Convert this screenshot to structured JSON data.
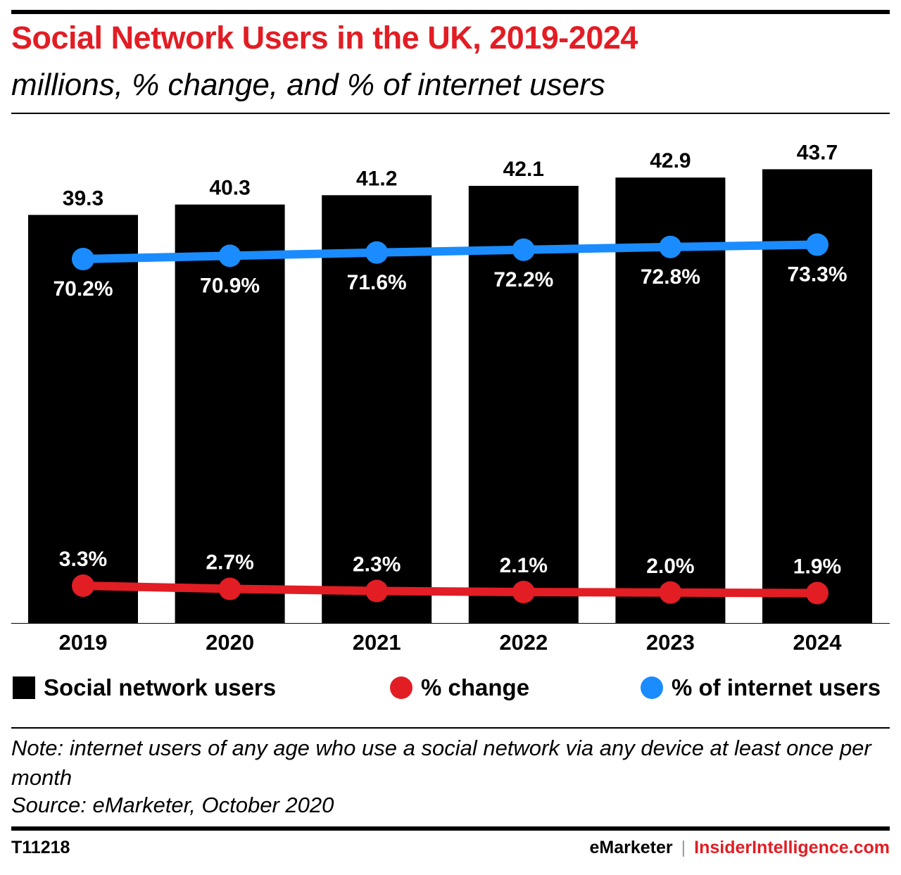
{
  "title": "Social Network Users in the UK, 2019-2024",
  "subtitle": "millions, % change, and % of internet users",
  "chart_data": {
    "type": "bar",
    "title": "Social Network Users in the UK, 2019-2024",
    "subtitle": "millions, % change, and % of internet users",
    "categories": [
      "2019",
      "2020",
      "2021",
      "2022",
      "2023",
      "2024"
    ],
    "series": [
      {
        "name": "Social network users",
        "type": "bar",
        "values": [
          39.3,
          40.3,
          41.2,
          42.1,
          42.9,
          43.7
        ],
        "labels": [
          "39.3",
          "40.3",
          "41.2",
          "42.1",
          "42.9",
          "43.7"
        ],
        "color": "#000000"
      },
      {
        "name": "% change",
        "type": "line",
        "values": [
          3.3,
          2.7,
          2.3,
          2.1,
          2.0,
          1.9
        ],
        "labels": [
          "3.3%",
          "2.7%",
          "2.3%",
          "2.1%",
          "2.0%",
          "1.9%"
        ],
        "color": "#e21d24"
      },
      {
        "name": "% of internet users",
        "type": "line",
        "values": [
          70.2,
          70.9,
          71.6,
          72.2,
          72.8,
          73.3
        ],
        "labels": [
          "70.2%",
          "70.9%",
          "71.6%",
          "72.2%",
          "72.8%",
          "73.3%"
        ],
        "color": "#1a8cff"
      }
    ],
    "grid": false,
    "legend": "bottom"
  },
  "legend": {
    "bars": "Social network users",
    "change": "% change",
    "internet": "% of internet users"
  },
  "note": "Note: internet users of any age who use a social network via any device at least once per month",
  "source": "Source: eMarketer, October 2020",
  "footer": {
    "chart_id": "T11218",
    "brand_left": "eMarketer",
    "separator": "|",
    "brand_right": "InsiderIntelligence.com"
  }
}
